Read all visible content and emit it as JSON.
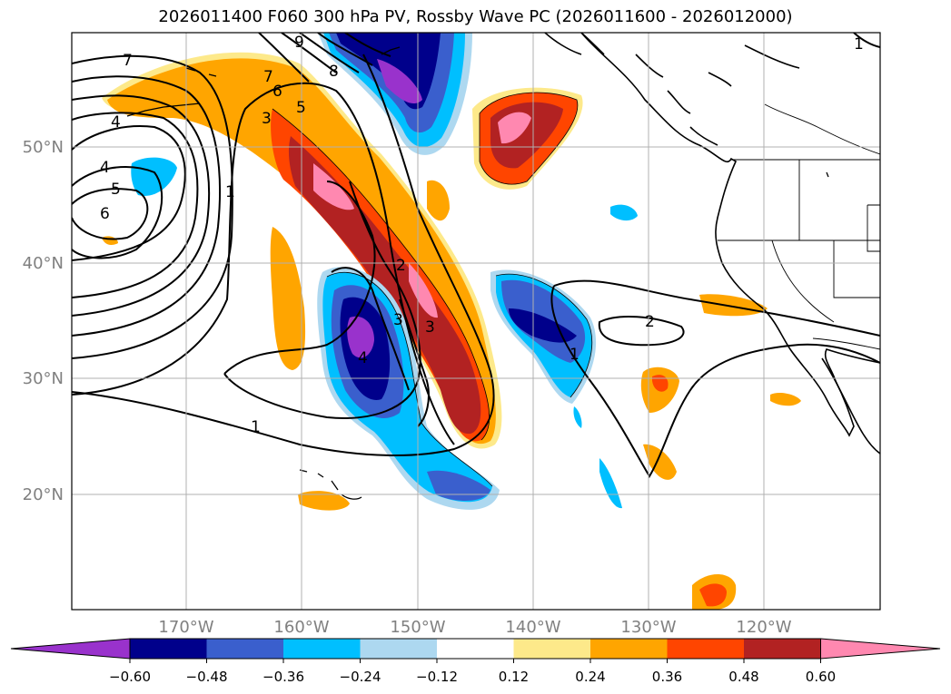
{
  "title": "2026011400 F060 300 hPa PV, Rossby Wave PC (2026011600 - 2026012000)",
  "map": {
    "lon_labels": [
      "170°W",
      "160°W",
      "150°W",
      "140°W",
      "130°W",
      "120°W"
    ],
    "lat_labels": [
      "50°N",
      "40°N",
      "30°N",
      "20°N"
    ],
    "contour_labels": [
      "7",
      "7",
      "6",
      "5",
      "4",
      "4",
      "5",
      "6",
      "3",
      "1",
      "2",
      "3",
      "3",
      "4",
      "1",
      "1",
      "2",
      "9",
      "8",
      "1"
    ]
  },
  "colorbar": {
    "ticks": [
      "−0.60",
      "−0.48",
      "−0.36",
      "−0.24",
      "−0.12",
      "0.12",
      "0.24",
      "0.36",
      "0.48",
      "0.60"
    ],
    "colors": [
      "#9932cc",
      "#00008b",
      "#3a5fcd",
      "#00bfff",
      "#add8f0",
      "#ffffff",
      "#fde98a",
      "#ffa500",
      "#ff4500",
      "#b22222",
      "#ff88b0"
    ]
  }
}
